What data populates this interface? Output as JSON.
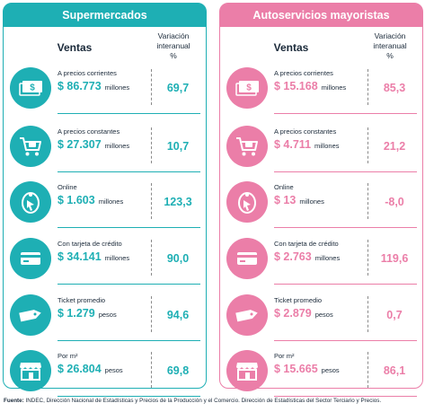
{
  "colors": {
    "teal": "#1eafb4",
    "pink": "#eb7ea8"
  },
  "header_ventas": "Ventas",
  "header_variacion": [
    "Variación",
    "interanual",
    "%"
  ],
  "panels": [
    {
      "title": "Supermercados",
      "rows": [
        {
          "icon": "money-bills-icon",
          "label": "A precios corrientes",
          "value": "$ 86.773",
          "unit": "millones",
          "pct": "69,7"
        },
        {
          "icon": "shopping-cart-icon",
          "label": "A precios constantes",
          "value": "$ 27.307",
          "unit": "millones",
          "pct": "10,7"
        },
        {
          "icon": "online-cursor-icon",
          "label": "Online",
          "value": "$ 1.603",
          "unit": "millones",
          "pct": "123,3"
        },
        {
          "icon": "credit-card-icon",
          "label": "Con tarjeta de crédito",
          "value": "$ 34.141",
          "unit": "millones",
          "pct": "90,0"
        },
        {
          "icon": "price-tag-icon",
          "label": "Ticket promedio",
          "value": "$ 1.279",
          "unit": "pesos",
          "pct": "94,6"
        },
        {
          "icon": "storefront-icon",
          "label": "Por m²",
          "value": "$ 26.804",
          "unit": "pesos",
          "pct": "69,8"
        }
      ]
    },
    {
      "title": "Autoservicios mayoristas",
      "rows": [
        {
          "icon": "money-bills-icon",
          "label": "A precios corrientes",
          "value": "$ 15.168",
          "unit": "millones",
          "pct": "85,3"
        },
        {
          "icon": "shopping-cart-icon",
          "label": "A precios constantes",
          "value": "$ 4.711",
          "unit": "millones",
          "pct": "21,2"
        },
        {
          "icon": "online-cursor-icon",
          "label": "Online",
          "value": "$ 13",
          "unit": "millones",
          "pct": "-8,0"
        },
        {
          "icon": "credit-card-icon",
          "label": "Con tarjeta de crédito",
          "value": "$ 2.763",
          "unit": "millones",
          "pct": "119,6"
        },
        {
          "icon": "price-tag-icon",
          "label": "Ticket promedio",
          "value": "$ 2.879",
          "unit": "pesos",
          "pct": "0,7"
        },
        {
          "icon": "storefront-icon",
          "label": "Por m²",
          "value": "$ 15.665",
          "unit": "pesos",
          "pct": "86,1"
        }
      ]
    }
  ],
  "footer": {
    "label": "Fuente:",
    "text": " INDEC, Dirección Nacional de Estadísticas y Precios de la Producción y el Comercio. Dirección de Estadísticas del Sector Terciario y Precios."
  }
}
